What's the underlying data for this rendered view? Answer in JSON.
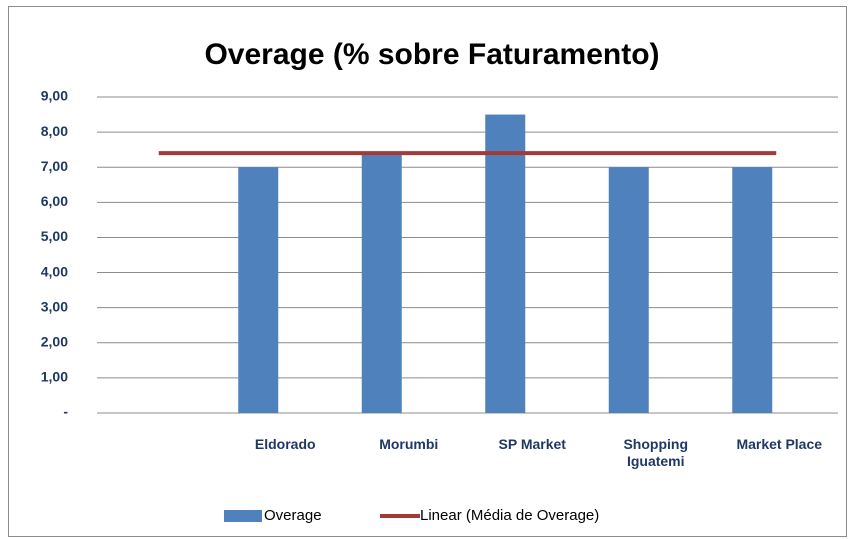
{
  "chart_data": {
    "type": "bar",
    "title": "Overage (% sobre Faturamento)",
    "categories": [
      null,
      "Eldorado",
      "Morumbi",
      "SP Market",
      "Shopping Iguatemi",
      "Market Place"
    ],
    "series": [
      {
        "name": "Overage",
        "type": "bar",
        "color": "#4f81bd",
        "values": [
          null,
          7.0,
          7.4,
          8.5,
          7.0,
          7.0
        ]
      },
      {
        "name": "Linear (Média de Overage)",
        "type": "line",
        "color": "#a33a36",
        "values": [
          7.4,
          7.4,
          7.4,
          7.4,
          7.4,
          7.4
        ]
      }
    ],
    "ylim": [
      0,
      9
    ],
    "yticks": [
      {
        "value": 0,
        "label": "-"
      },
      {
        "value": 1,
        "label": "1,00"
      },
      {
        "value": 2,
        "label": "2,00"
      },
      {
        "value": 3,
        "label": "3,00"
      },
      {
        "value": 4,
        "label": "4,00"
      },
      {
        "value": 5,
        "label": "5,00"
      },
      {
        "value": 6,
        "label": "6,00"
      },
      {
        "value": 7,
        "label": "7,00"
      },
      {
        "value": 8,
        "label": "8,00"
      },
      {
        "value": 9,
        "label": "9,00"
      }
    ],
    "grid": true,
    "legend": "bottom"
  }
}
